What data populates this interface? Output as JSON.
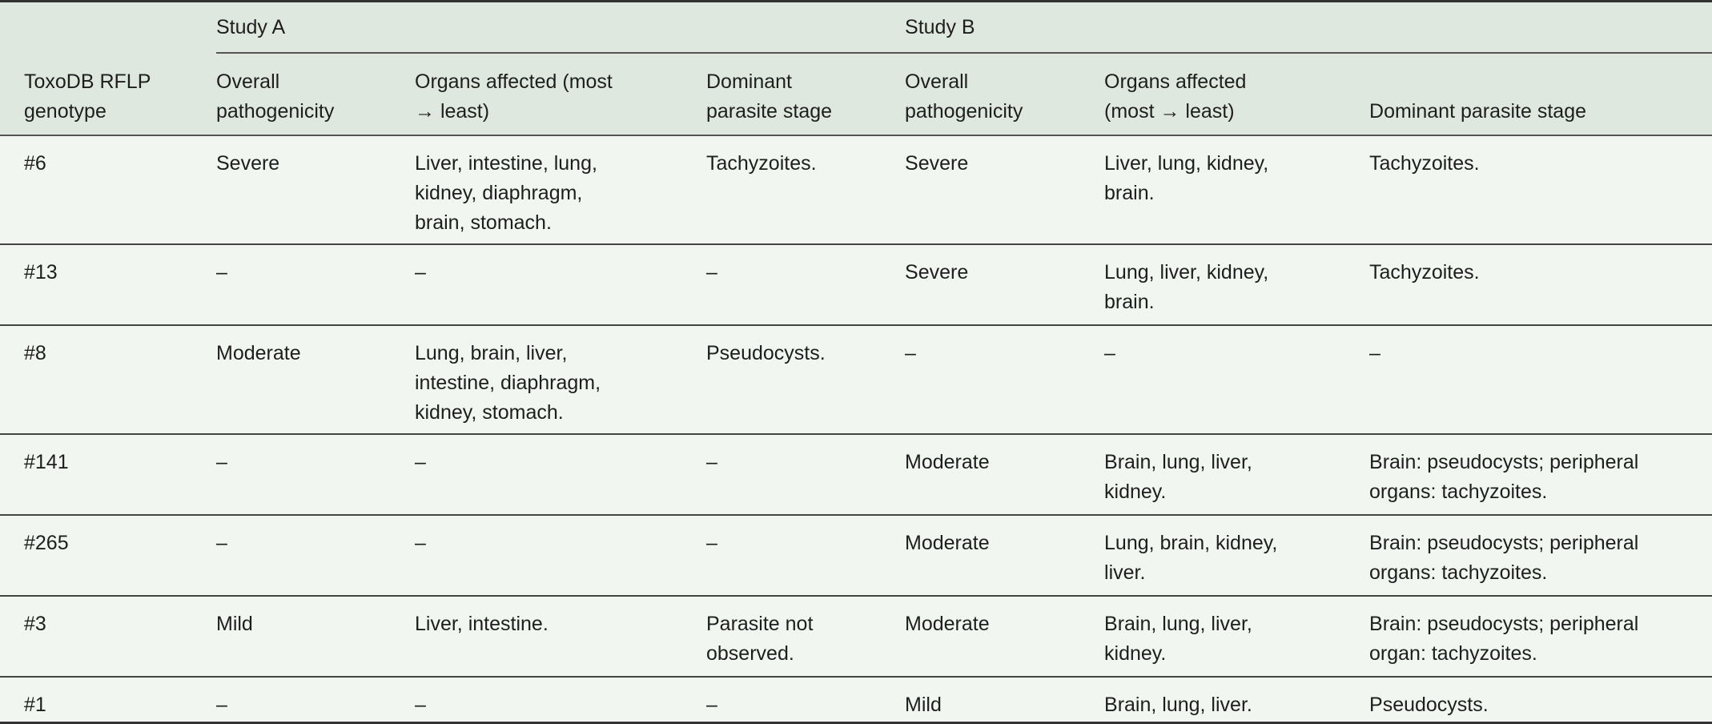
{
  "header": {
    "genotype_label": "ToxoDB RFLP\ngenotype",
    "study_a": "Study A",
    "study_b": "Study B",
    "columns": [
      "Overall\npathogenicity",
      "Organs affected (most\n→ least)",
      "Dominant\nparasite stage",
      "Overall\npathogenicity",
      "Organs affected\n(most → least)",
      "Dominant parasite stage"
    ]
  },
  "rows": [
    {
      "genotype": "#6",
      "a_path": "Severe",
      "a_organs": "Liver, intestine, lung,\nkidney, diaphragm,\nbrain, stomach.",
      "a_stage": "Tachyzoites.",
      "b_path": "Severe",
      "b_organs": "Liver, lung, kidney,\nbrain.",
      "b_stage": "Tachyzoites."
    },
    {
      "genotype": "#13",
      "a_path": "–",
      "a_organs": "–",
      "a_stage": "–",
      "b_path": "Severe",
      "b_organs": "Lung, liver, kidney,\nbrain.",
      "b_stage": "Tachyzoites."
    },
    {
      "genotype": "#8",
      "a_path": "Moderate",
      "a_organs": "Lung, brain, liver,\nintestine, diaphragm,\nkidney, stomach.",
      "a_stage": "Pseudocysts.",
      "b_path": "–",
      "b_organs": "–",
      "b_stage": "–"
    },
    {
      "genotype": "#141",
      "a_path": "–",
      "a_organs": "–",
      "a_stage": "–",
      "b_path": "Moderate",
      "b_organs": "Brain, lung, liver,\nkidney.",
      "b_stage": "Brain: pseudocysts; peripheral\norgans: tachyzoites."
    },
    {
      "genotype": "#265",
      "a_path": "–",
      "a_organs": "–",
      "a_stage": "–",
      "b_path": "Moderate",
      "b_organs": "Lung, brain, kidney,\nliver.",
      "b_stage": "Brain: pseudocysts; peripheral\norgans: tachyzoites."
    },
    {
      "genotype": "#3",
      "a_path": "Mild",
      "a_organs": "Liver, intestine.",
      "a_stage": "Parasite not\nobserved.",
      "b_path": "Moderate",
      "b_organs": "Brain, lung, liver,\nkidney.",
      "b_stage": "Brain: pseudocysts; peripheral\norgan: tachyzoites."
    },
    {
      "genotype": "#1",
      "a_path": "–",
      "a_organs": "–",
      "a_stage": "–",
      "b_path": "Mild",
      "b_organs": "Brain, lung, liver.",
      "b_stage": "Pseudocysts."
    }
  ]
}
